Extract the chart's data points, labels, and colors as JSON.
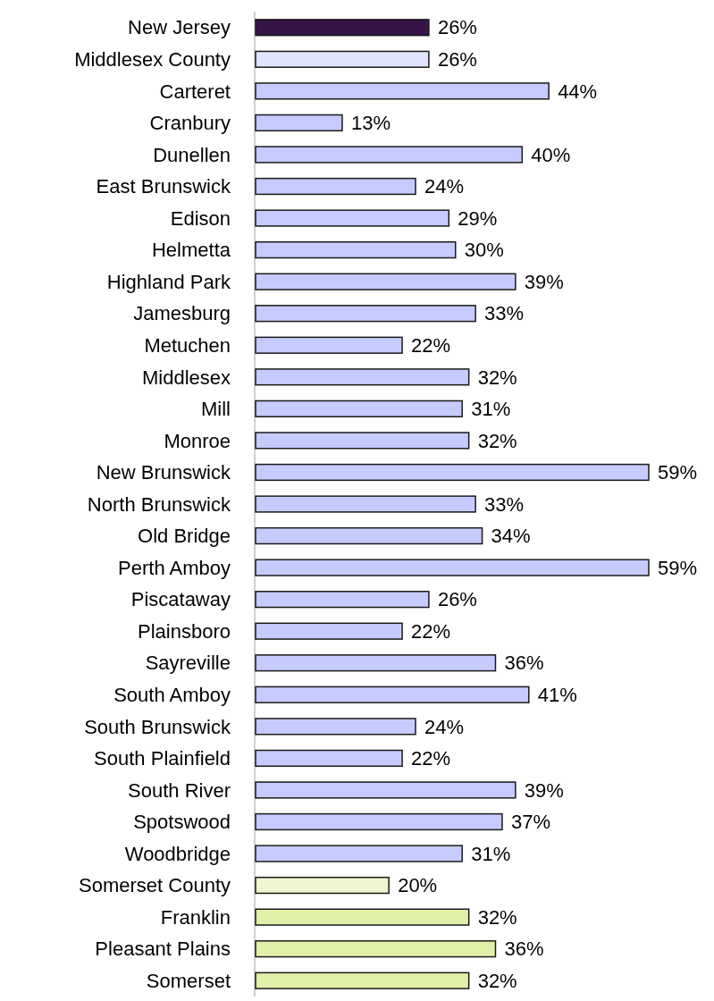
{
  "chart_data": {
    "type": "bar",
    "orientation": "horizontal",
    "categories": [
      "New Jersey",
      "Middlesex County",
      "Carteret",
      "Cranbury",
      "Dunellen",
      "East Brunswick",
      "Edison",
      "Helmetta",
      "Highland Park",
      "Jamesburg",
      "Metuchen",
      "Middlesex",
      "Mill",
      "Monroe",
      "New Brunswick",
      "North Brunswick",
      "Old Bridge",
      "Perth Amboy",
      "Piscataway",
      "Plainsboro",
      "Sayreville",
      "South Amboy",
      "South Brunswick",
      "South Plainfield",
      "South River",
      "Spotswood",
      "Woodbridge",
      "Somerset County",
      "Franklin",
      "Pleasant Plains",
      "Somerset"
    ],
    "values": [
      26,
      26,
      44,
      13,
      40,
      24,
      29,
      30,
      39,
      33,
      22,
      32,
      31,
      32,
      59,
      33,
      34,
      59,
      26,
      22,
      36,
      41,
      24,
      22,
      39,
      37,
      31,
      20,
      32,
      36,
      32
    ],
    "value_labels": [
      "26%",
      "26%",
      "44%",
      "13%",
      "40%",
      "24%",
      "29%",
      "30%",
      "39%",
      "33%",
      "22%",
      "32%",
      "31%",
      "32%",
      "59%",
      "33%",
      "34%",
      "59%",
      "26%",
      "22%",
      "36%",
      "41%",
      "24%",
      "22%",
      "39%",
      "37%",
      "31%",
      "20%",
      "32%",
      "36%",
      "32%"
    ],
    "colors": [
      "#361448",
      "#e0e4fd",
      "#c5cbfc",
      "#c5cbfc",
      "#c5cbfc",
      "#c5cbfc",
      "#c5cbfc",
      "#c5cbfc",
      "#c5cbfc",
      "#c5cbfc",
      "#c5cbfc",
      "#c5cbfc",
      "#c5cbfc",
      "#c5cbfc",
      "#c5cbfc",
      "#c5cbfc",
      "#c5cbfc",
      "#c5cbfc",
      "#c5cbfc",
      "#c5cbfc",
      "#c5cbfc",
      "#c5cbfc",
      "#c5cbfc",
      "#c5cbfc",
      "#c5cbfc",
      "#c5cbfc",
      "#c5cbfc",
      "#eef6cf",
      "#e1f0a9",
      "#e1f0a9",
      "#e1f0a9"
    ]
  }
}
